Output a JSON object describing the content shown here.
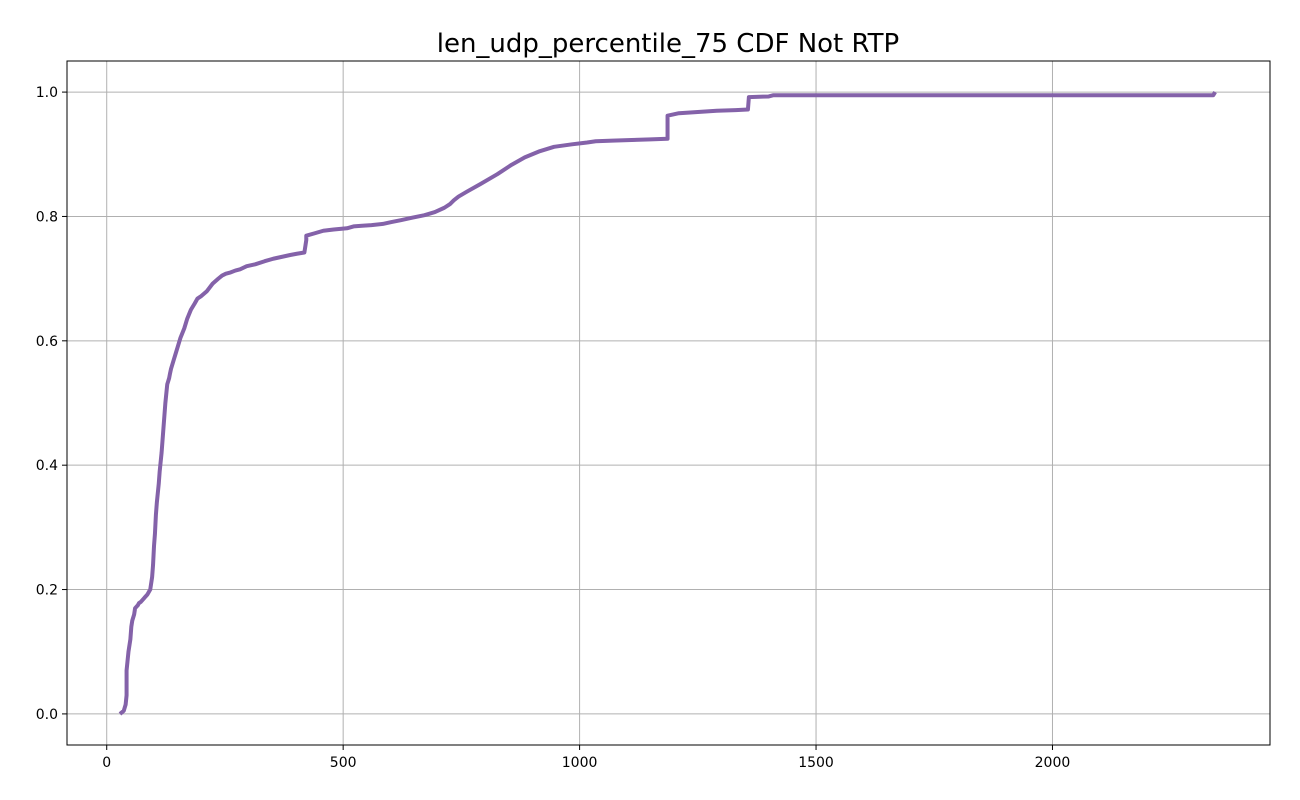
{
  "chart_data": {
    "type": "line",
    "title": "len_udp_percentile_75 CDF Not RTP",
    "xlabel": "",
    "ylabel": "",
    "xlim": [
      -84,
      2460
    ],
    "ylim": [
      -0.05,
      1.05
    ],
    "xticks": [
      0,
      500,
      1000,
      1500,
      2000
    ],
    "xtick_labels": [
      "0",
      "500",
      "1000",
      "1500",
      "2000"
    ],
    "yticks": [
      0.0,
      0.2,
      0.4,
      0.6,
      0.8,
      1.0
    ],
    "ytick_labels": [
      "0.0",
      "0.2",
      "0.4",
      "0.6",
      "0.8",
      "1.0"
    ],
    "grid": true,
    "line_color": "#8462a9",
    "series": [
      {
        "x": [
          28,
          36,
          40,
          42,
          42,
          44,
          46,
          50,
          52,
          54,
          58,
          60,
          66,
          68,
          72,
          80,
          86,
          92,
          96,
          98,
          100,
          102,
          104,
          106,
          108,
          110,
          112,
          116,
          120,
          124,
          128,
          132,
          134,
          136,
          138,
          142,
          146,
          150,
          156,
          164,
          170,
          178,
          186,
          192,
          200,
          212,
          224,
          236,
          244,
          252,
          262,
          272,
          282,
          296,
          314,
          334,
          352,
          370,
          388,
          402,
          418,
          422,
          422,
          440,
          458,
          480,
          508,
          522,
          540,
          560,
          584,
          602,
          622,
          646,
          672,
          694,
          714,
          726,
          734,
          744,
          762,
          790,
          826,
          856,
          884,
          916,
          946,
          984,
          1016,
          1034,
          1070,
          1110,
          1150,
          1186,
          1186,
          1210,
          1250,
          1290,
          1330,
          1356,
          1358,
          1400,
          1410,
          2340,
          2344
        ],
        "y": [
          0.0,
          0.005,
          0.015,
          0.03,
          0.07,
          0.085,
          0.1,
          0.12,
          0.14,
          0.15,
          0.16,
          0.17,
          0.175,
          0.178,
          0.18,
          0.187,
          0.192,
          0.2,
          0.22,
          0.24,
          0.27,
          0.29,
          0.32,
          0.34,
          0.355,
          0.37,
          0.39,
          0.42,
          0.46,
          0.5,
          0.53,
          0.54,
          0.548,
          0.555,
          0.56,
          0.57,
          0.58,
          0.59,
          0.605,
          0.62,
          0.635,
          0.65,
          0.66,
          0.668,
          0.672,
          0.68,
          0.692,
          0.7,
          0.705,
          0.708,
          0.71,
          0.713,
          0.715,
          0.72,
          0.723,
          0.728,
          0.732,
          0.735,
          0.738,
          0.74,
          0.742,
          0.762,
          0.769,
          0.773,
          0.777,
          0.779,
          0.781,
          0.784,
          0.785,
          0.786,
          0.788,
          0.791,
          0.794,
          0.798,
          0.802,
          0.807,
          0.814,
          0.82,
          0.826,
          0.832,
          0.84,
          0.852,
          0.868,
          0.883,
          0.895,
          0.905,
          0.912,
          0.916,
          0.919,
          0.921,
          0.922,
          0.923,
          0.924,
          0.925,
          0.962,
          0.966,
          0.968,
          0.97,
          0.971,
          0.972,
          0.992,
          0.993,
          0.995,
          0.995,
          1.0
        ]
      }
    ]
  }
}
